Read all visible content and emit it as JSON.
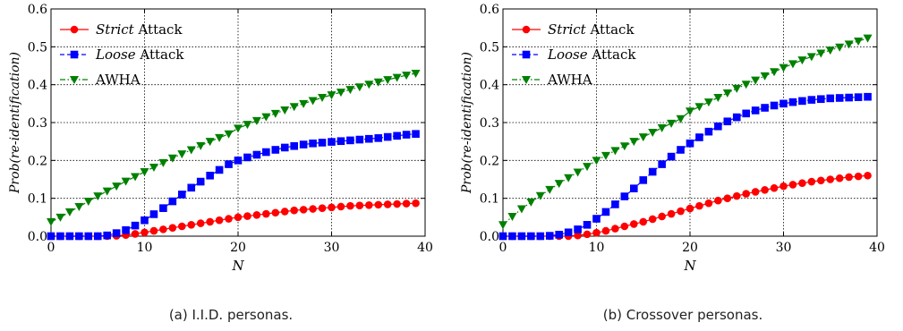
{
  "chart_data": [
    {
      "type": "line",
      "caption": "(a) I.I.D. personas.",
      "xlabel": "N",
      "ylabel": "Prob(re-identification)",
      "xlim": [
        0,
        40
      ],
      "ylim": [
        0,
        0.6
      ],
      "xticks": [
        0,
        10,
        20,
        30,
        40
      ],
      "yticks": [
        0.0,
        0.1,
        0.2,
        0.3,
        0.4,
        0.5,
        0.6
      ],
      "grid": true,
      "legend_position": "top-left",
      "x": [
        0,
        1,
        2,
        3,
        4,
        5,
        6,
        7,
        8,
        9,
        10,
        11,
        12,
        13,
        14,
        15,
        16,
        17,
        18,
        19,
        20,
        21,
        22,
        23,
        24,
        25,
        26,
        27,
        28,
        29,
        30,
        31,
        32,
        33,
        34,
        35,
        36,
        37,
        38,
        39
      ],
      "series": [
        {
          "name_italic": "Strict",
          "name_rest": " Attack",
          "color": "#ff0000",
          "marker": "circle",
          "linestyle": "solid",
          "values": [
            0,
            0,
            0,
            0,
            0,
            0,
            0,
            0.001,
            0.003,
            0.006,
            0.01,
            0.014,
            0.018,
            0.022,
            0.026,
            0.03,
            0.034,
            0.038,
            0.042,
            0.046,
            0.05,
            0.053,
            0.056,
            0.059,
            0.062,
            0.065,
            0.068,
            0.07,
            0.072,
            0.074,
            0.076,
            0.078,
            0.08,
            0.081,
            0.082,
            0.083,
            0.084,
            0.085,
            0.086,
            0.087
          ]
        },
        {
          "name_italic": "Loose",
          "name_rest": " Attack",
          "color": "#0000ff",
          "marker": "square",
          "linestyle": "dashed",
          "values": [
            0,
            0,
            0,
            0,
            0,
            0,
            0.002,
            0.008,
            0.016,
            0.028,
            0.042,
            0.058,
            0.074,
            0.092,
            0.11,
            0.128,
            0.144,
            0.16,
            0.175,
            0.19,
            0.2,
            0.208,
            0.215,
            0.222,
            0.228,
            0.234,
            0.238,
            0.242,
            0.245,
            0.247,
            0.249,
            0.251,
            0.253,
            0.255,
            0.257,
            0.259,
            0.262,
            0.265,
            0.268,
            0.27
          ]
        },
        {
          "name_italic": "",
          "name_rest": "AWHA",
          "color": "#008000",
          "marker": "triangle-down",
          "linestyle": "dashdot",
          "values": [
            0.038,
            0.05,
            0.064,
            0.078,
            0.092,
            0.106,
            0.119,
            0.132,
            0.145,
            0.157,
            0.17,
            0.182,
            0.194,
            0.206,
            0.217,
            0.228,
            0.239,
            0.25,
            0.26,
            0.27,
            0.285,
            0.295,
            0.305,
            0.315,
            0.324,
            0.333,
            0.342,
            0.35,
            0.358,
            0.366,
            0.373,
            0.38,
            0.387,
            0.394,
            0.401,
            0.407,
            0.413,
            0.419,
            0.425,
            0.43
          ]
        }
      ]
    },
    {
      "type": "line",
      "caption": "(b) Crossover personas.",
      "xlabel": "N",
      "ylabel": "Prob(re-identification)",
      "xlim": [
        0,
        40
      ],
      "ylim": [
        0,
        0.6
      ],
      "xticks": [
        0,
        10,
        20,
        30,
        40
      ],
      "yticks": [
        0.0,
        0.1,
        0.2,
        0.3,
        0.4,
        0.5,
        0.6
      ],
      "grid": true,
      "legend_position": "top-left",
      "x": [
        0,
        1,
        2,
        3,
        4,
        5,
        6,
        7,
        8,
        9,
        10,
        11,
        12,
        13,
        14,
        15,
        16,
        17,
        18,
        19,
        20,
        21,
        22,
        23,
        24,
        25,
        26,
        27,
        28,
        29,
        30,
        31,
        32,
        33,
        34,
        35,
        36,
        37,
        38,
        39
      ],
      "series": [
        {
          "name_italic": "Strict",
          "name_rest": " Attack",
          "color": "#ff0000",
          "marker": "circle",
          "linestyle": "solid",
          "values": [
            0,
            0,
            0,
            0,
            0,
            0,
            0,
            0,
            0.002,
            0.005,
            0.009,
            0.014,
            0.02,
            0.026,
            0.032,
            0.038,
            0.045,
            0.052,
            0.059,
            0.066,
            0.073,
            0.08,
            0.087,
            0.094,
            0.1,
            0.106,
            0.112,
            0.117,
            0.122,
            0.127,
            0.132,
            0.136,
            0.14,
            0.144,
            0.147,
            0.15,
            0.153,
            0.156,
            0.158,
            0.16
          ]
        },
        {
          "name_italic": "Loose",
          "name_rest": " Attack",
          "color": "#0000ff",
          "marker": "square",
          "linestyle": "dashed",
          "values": [
            0,
            0,
            0,
            0,
            0,
            0.001,
            0.004,
            0.01,
            0.018,
            0.03,
            0.046,
            0.064,
            0.084,
            0.105,
            0.126,
            0.148,
            0.17,
            0.19,
            0.21,
            0.228,
            0.245,
            0.261,
            0.276,
            0.29,
            0.303,
            0.314,
            0.324,
            0.332,
            0.339,
            0.345,
            0.35,
            0.354,
            0.357,
            0.36,
            0.362,
            0.364,
            0.365,
            0.366,
            0.367,
            0.368
          ]
        },
        {
          "name_italic": "",
          "name_rest": "AWHA",
          "color": "#008000",
          "marker": "triangle-down",
          "linestyle": "dashdot",
          "values": [
            0.03,
            0.052,
            0.072,
            0.09,
            0.107,
            0.123,
            0.139,
            0.154,
            0.169,
            0.184,
            0.2,
            0.213,
            0.226,
            0.238,
            0.25,
            0.262,
            0.274,
            0.286,
            0.298,
            0.31,
            0.33,
            0.342,
            0.354,
            0.366,
            0.378,
            0.39,
            0.401,
            0.412,
            0.423,
            0.434,
            0.445,
            0.455,
            0.465,
            0.474,
            0.483,
            0.491,
            0.499,
            0.507,
            0.515,
            0.523
          ]
        }
      ]
    }
  ]
}
